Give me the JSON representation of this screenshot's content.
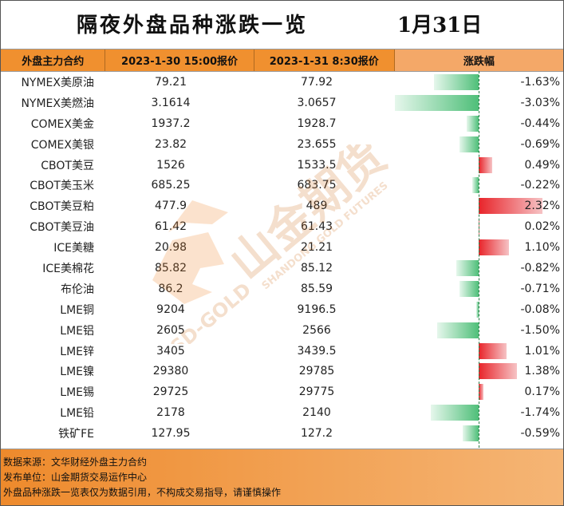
{
  "title": "隔夜外盘品种涨跌一览",
  "date": "1月31日",
  "columns": {
    "name": "外盘主力合约",
    "price_prev": "2023-1-30 15:00报价",
    "price_curr": "2023-1-31 8:30报价",
    "change": "涨跌幅"
  },
  "rows": [
    {
      "name": "NYMEX美原油",
      "prev": "79.21",
      "curr": "77.92",
      "pct_label": "-1.63%",
      "pct": -1.63
    },
    {
      "name": "NYMEX美燃油",
      "prev": "3.1614",
      "curr": "3.0657",
      "pct_label": "-3.03%",
      "pct": -3.03
    },
    {
      "name": "COMEX美金",
      "prev": "1937.2",
      "curr": "1928.7",
      "pct_label": "-0.44%",
      "pct": -0.44
    },
    {
      "name": "COMEX美银",
      "prev": "23.82",
      "curr": "23.655",
      "pct_label": "-0.69%",
      "pct": -0.69
    },
    {
      "name": "CBOT美豆",
      "prev": "1526",
      "curr": "1533.5",
      "pct_label": "0.49%",
      "pct": 0.49
    },
    {
      "name": "CBOT美玉米",
      "prev": "685.25",
      "curr": "683.75",
      "pct_label": "-0.22%",
      "pct": -0.22
    },
    {
      "name": "CBOT美豆粕",
      "prev": "477.9",
      "curr": "489",
      "pct_label": "2.32%",
      "pct": 2.32
    },
    {
      "name": "CBOT美豆油",
      "prev": "61.42",
      "curr": "61.43",
      "pct_label": "0.02%",
      "pct": 0.02
    },
    {
      "name": "ICE美糖",
      "prev": "20.98",
      "curr": "21.21",
      "pct_label": "1.10%",
      "pct": 1.1
    },
    {
      "name": "ICE美棉花",
      "prev": "85.82",
      "curr": "85.12",
      "pct_label": "-0.82%",
      "pct": -0.82
    },
    {
      "name": "布伦油",
      "prev": "86.2",
      "curr": "85.59",
      "pct_label": "-0.71%",
      "pct": -0.71
    },
    {
      "name": "LME铜",
      "prev": "9204",
      "curr": "9196.5",
      "pct_label": "-0.08%",
      "pct": -0.08
    },
    {
      "name": "LME铝",
      "prev": "2605",
      "curr": "2566",
      "pct_label": "-1.50%",
      "pct": -1.5
    },
    {
      "name": "LME锌",
      "prev": "3405",
      "curr": "3439.5",
      "pct_label": "1.01%",
      "pct": 1.01
    },
    {
      "name": "LME镍",
      "prev": "29380",
      "curr": "29785",
      "pct_label": "1.38%",
      "pct": 1.38
    },
    {
      "name": "LME锡",
      "prev": "29725",
      "curr": "29775",
      "pct_label": "0.17%",
      "pct": 0.17
    },
    {
      "name": "LME铅",
      "prev": "2178",
      "curr": "2140",
      "pct_label": "-1.74%",
      "pct": -1.74
    },
    {
      "name": "铁矿FE",
      "prev": "127.95",
      "curr": "127.2",
      "pct_label": "-0.59%",
      "pct": -0.59
    }
  ],
  "watermark": {
    "brand_cn": "山金期货",
    "brand_en": "SHANDONG GOLD FUTURES",
    "logo_text": "SD-GOLD"
  },
  "footer": {
    "source": "数据来源：文华财经外盘主力合约",
    "publisher": "发布单位：山金期货交易运作中心",
    "disclaimer": "外盘品种涨跌一览表仅为数据引用，不构成交易指导，请谨慎操作"
  },
  "colors": {
    "header_orange": "#f0902f",
    "negative_green": "#4fbf79",
    "positive_red": "#e8242a"
  }
}
